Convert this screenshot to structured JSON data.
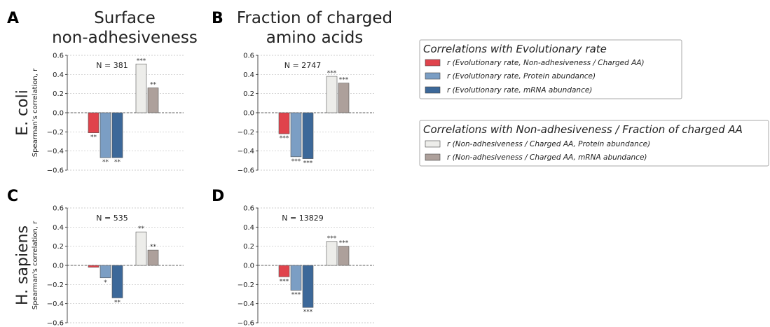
{
  "panel_letters": [
    "A",
    "B",
    "C",
    "D"
  ],
  "column_titles": [
    [
      "Surface",
      "non-adhesiveness"
    ],
    [
      "Fraction of charged",
      "amino acids"
    ]
  ],
  "row_labels": [
    "E. coli",
    "H. sapiens"
  ],
  "ylabel": "Spearman's correlation, r",
  "series_colors": [
    "#e0434c",
    "#7b9ec4",
    "#3c6899",
    "#ededea",
    "#ada09b"
  ],
  "legend1": {
    "title": "Correlations with Evolutionary rate",
    "items": [
      "r (Evolutionary rate, Non-adhesiveness / Charged AA)",
      "r (Evolutionary rate, Protein abundance)",
      "r (Evolutionary rate, mRNA abundance)"
    ]
  },
  "legend2": {
    "title": "Correlations with Non-adhesiveness / Fraction of charged AA",
    "items": [
      "r (Non-adhesiveness / Charged AA, Protein abundance)",
      "r (Non-adhesiveness / Charged AA, mRNA abundance)"
    ]
  },
  "chart_data": [
    {
      "panel": "A",
      "type": "bar",
      "n_label": "N = 381",
      "ylim": [
        -0.6,
        0.6
      ],
      "yticks": [
        -0.6,
        -0.4,
        -0.2,
        0.0,
        0.2,
        0.4,
        0.6
      ],
      "yticklabels": [
        "−0.6",
        "−0.4",
        "−0.2",
        "0.0",
        "0.2",
        "0.4",
        "0.6"
      ],
      "values": [
        -0.21,
        -0.47,
        -0.47,
        0.51,
        0.26
      ],
      "significance": [
        "**",
        "**",
        "**",
        "***",
        "**"
      ]
    },
    {
      "panel": "B",
      "type": "bar",
      "n_label": "N = 2747",
      "ylim": [
        -0.6,
        0.6
      ],
      "yticks": [
        -0.6,
        -0.4,
        -0.2,
        0.0,
        0.2,
        0.4,
        0.6
      ],
      "yticklabels": [
        "−0.6",
        "−0.4",
        "−0.2",
        "0.0",
        "0.2",
        "0.4",
        "0.6"
      ],
      "values": [
        -0.22,
        -0.46,
        -0.48,
        0.38,
        0.31
      ],
      "significance": [
        "***",
        "***",
        "***",
        "***",
        "***"
      ]
    },
    {
      "panel": "C",
      "type": "bar",
      "n_label": "N = 535",
      "ylim": [
        -0.6,
        0.6
      ],
      "yticks": [
        -0.6,
        -0.4,
        -0.2,
        0.0,
        0.2,
        0.4,
        0.6
      ],
      "yticklabels": [
        "−0.6",
        "−0.4",
        "−0.2",
        "0.0",
        "0.2",
        "0.4",
        "0.6"
      ],
      "values": [
        -0.02,
        -0.13,
        -0.34,
        0.35,
        0.16
      ],
      "significance": [
        "",
        "*",
        "**",
        "**",
        "**"
      ]
    },
    {
      "panel": "D",
      "type": "bar",
      "n_label": "N = 13829",
      "ylim": [
        -0.6,
        0.6
      ],
      "yticks": [
        -0.6,
        -0.4,
        -0.2,
        0.0,
        0.2,
        0.4,
        0.6
      ],
      "yticklabels": [
        "−0.6",
        "−0.4",
        "−0.2",
        "0.0",
        "0.2",
        "0.4",
        "0.6"
      ],
      "values": [
        -0.12,
        -0.26,
        -0.44,
        0.25,
        0.2
      ],
      "significance": [
        "***",
        "***",
        "***",
        "***",
        "***"
      ]
    }
  ]
}
